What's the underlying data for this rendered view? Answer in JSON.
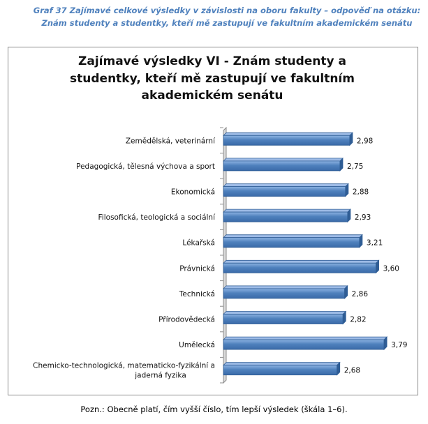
{
  "caption": {
    "line1": "Graf 37 Zajímavé celkové výsledky v závislosti na oboru fakulty – odpověď na otázku:",
    "line2": "Znám studenty a studentky, kteří mě zastupují ve fakultním akademickém senátu"
  },
  "note": "Pozn.: Obecně platí, čím vyšší číslo, tím lepší výsledek (škála 1–6).",
  "chart_data": {
    "type": "bar",
    "orientation": "horizontal",
    "title_lines": [
      "Zajímavé výsledky VI - Znám studenty a",
      "studentky, kteří mě zastupují ve fakultním",
      "akademickém senátu"
    ],
    "categories": [
      "Zemědělská, veterinární",
      "Pedagogická, tělesná výchova a sport",
      "Ekonomická",
      "Filosofická, teologická a sociální",
      "Lékařská",
      "Právnická",
      "Technická",
      "Přírodovědecká",
      "Umělecká",
      "Chemicko-technologická, matematicko-fyzikální a jaderná fyzika"
    ],
    "category_lines": [
      [
        "Zemědělská, veterinární"
      ],
      [
        "Pedagogická, tělesná výchova a sport"
      ],
      [
        "Ekonomická"
      ],
      [
        "Filosofická, teologická a sociální"
      ],
      [
        "Lékařská"
      ],
      [
        "Právnická"
      ],
      [
        "Technická"
      ],
      [
        "Přírodovědecká"
      ],
      [
        "Umělecká"
      ],
      [
        "Chemicko-technologická, matematicko-fyzikální a",
        "jaderná fyzika"
      ]
    ],
    "values": [
      2.98,
      2.75,
      2.88,
      2.93,
      3.21,
      3.6,
      2.86,
      2.82,
      3.79,
      2.68
    ],
    "value_labels": [
      "2,98",
      "2,75",
      "2,88",
      "2,93",
      "3,21",
      "3,60",
      "2,86",
      "2,82",
      "3,79",
      "2,68"
    ],
    "xlim": [
      0,
      4.2
    ],
    "grid": false,
    "legend": "none",
    "bar_color": "#4f81bd"
  }
}
